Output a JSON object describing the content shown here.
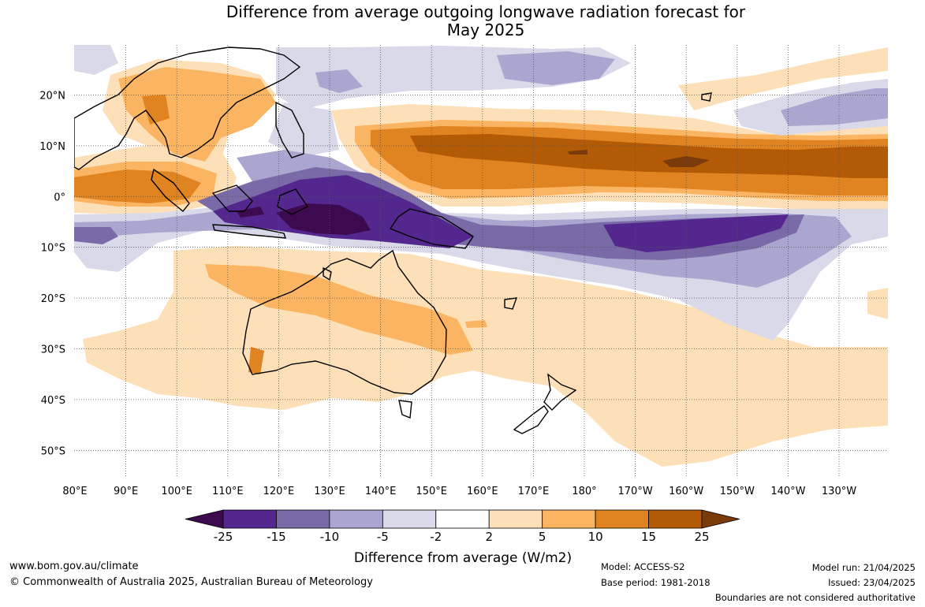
{
  "title": {
    "line1": "Difference from average outgoing longwave radiation forecast for",
    "line2": "May 2025"
  },
  "lat_labels": [
    "20°N",
    "10°N",
    "0°",
    "10°S",
    "20°S",
    "30°S",
    "40°S",
    "50°S"
  ],
  "lon_labels": [
    "80°E",
    "90°E",
    "100°E",
    "110°E",
    "120°E",
    "130°E",
    "140°E",
    "150°E",
    "160°E",
    "170°E",
    "180°",
    "170°W",
    "160°W",
    "150°W",
    "140°W",
    "130°W"
  ],
  "colorbar": {
    "title": "Difference from average (W/m2)",
    "ticks": [
      "-25",
      "-15",
      "-10",
      "-5",
      "-2",
      "2",
      "5",
      "10",
      "15",
      "25"
    ],
    "colors": [
      "#3d0a4f",
      "#54278f",
      "#7a6aa8",
      "#aba6cf",
      "#d9d9ea",
      "#ffffff",
      "#fde0b7",
      "#fbb461",
      "#e08421",
      "#b35a06",
      "#7a3a0a"
    ]
  },
  "footer": {
    "website": "www.bom.gov.au/climate",
    "copyright": "© Commonwealth of Australia 2025, Australian Bureau of Meteorology",
    "model": "Model: ACCESS-S2",
    "base_period": "Base period: 1981-2018",
    "model_run": "Model run: 21/04/2025",
    "issued": "Issued: 23/04/2025",
    "disclaimer": "Boundaries are not considered authoritative"
  }
}
